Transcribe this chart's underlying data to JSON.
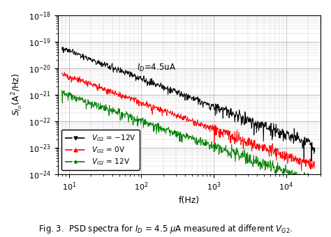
{
  "title": "",
  "xlabel": "f(Hz)",
  "ylabel": "SI_D (A^2/Hz)",
  "xlim": [
    7,
    30000
  ],
  "ylim": [
    1e-24,
    1e-18
  ],
  "annotation": "I_D=4.5uA",
  "seed_black": 42,
  "seed_red": 7,
  "seed_green": 13,
  "A_black": 5e-19,
  "A_red": 5e-20,
  "A_green": 8e-21,
  "alpha_black": 1.05,
  "alpha_red": 1.0,
  "alpha_green": 0.95,
  "noise_scale_black": 0.15,
  "noise_scale_red": 0.15,
  "noise_scale_green": 0.18,
  "fig_caption": "Fig. 3.  PSD spectra for I_D = 4.5 muA measured at different V_G2."
}
